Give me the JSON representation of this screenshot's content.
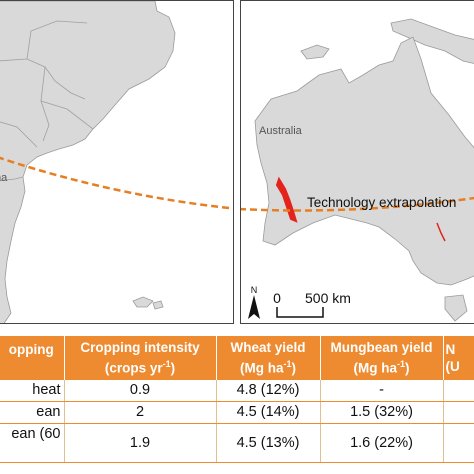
{
  "map": {
    "left_country_label": "na",
    "right_country_label": "Australia",
    "route_label": "Technology extrapolation",
    "north_label": "N",
    "scale_zero": "0",
    "scale_distance": "500 km",
    "colors": {
      "land": "#d9d9d9",
      "border": "#a0a0a0",
      "route": "#e67e22",
      "study_region": "#e3231c"
    }
  },
  "table": {
    "headers": [
      {
        "main": "opping",
        "unit": ""
      },
      {
        "main": "Cropping intensity",
        "unit_prefix": "(crops yr",
        "unit_sup": "-1",
        "unit_suffix": ")"
      },
      {
        "main": "Wheat yield",
        "unit_prefix": "(Mg ha",
        "unit_sup": "-1",
        "unit_suffix": ")"
      },
      {
        "main": "Mungbean yield",
        "unit_prefix": "(Mg ha",
        "unit_sup": "-1",
        "unit_suffix": ")"
      },
      {
        "main": "N",
        "unit": "(U"
      }
    ],
    "rows": [
      {
        "system": "heat",
        "intensity": "0.9",
        "wheat": "4.8 (12%)",
        "mungbean": "-",
        "extra": ""
      },
      {
        "system": "ean",
        "intensity": "2",
        "wheat": "4.5 (14%)",
        "mungbean": "1.5 (32%)",
        "extra": ""
      },
      {
        "system": "ean (60",
        "intensity": "1.9",
        "wheat": "4.5 (13%)",
        "mungbean": "1.6 (22%)",
        "extra": ""
      }
    ]
  }
}
